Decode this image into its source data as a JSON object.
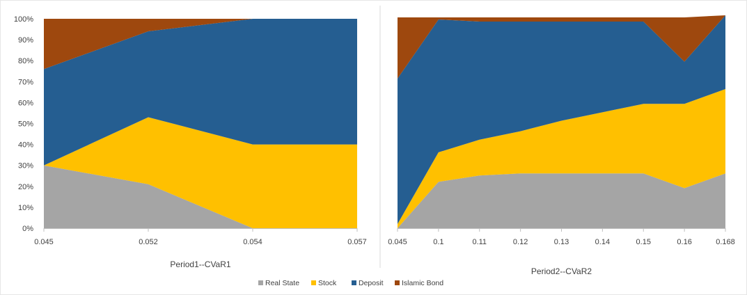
{
  "colors": {
    "real_state": "#a5a5a5",
    "stock": "#ffc000",
    "deposit": "#255e91",
    "islamic_bond": "#9e480e",
    "frame": "#d9d9d9",
    "axis": "#bfbfbf"
  },
  "legend": {
    "placement": "bottom-center",
    "items": [
      "Real State",
      "Stock",
      "Deposit",
      "Islamic Bond"
    ]
  },
  "chart_data": [
    {
      "type": "area",
      "stacked": "percent",
      "title": "",
      "xlabel": "Period1--CVaR1",
      "ylabel": "",
      "ylim": [
        0,
        100
      ],
      "yticks": [
        "0%",
        "10%",
        "20%",
        "30%",
        "40%",
        "50%",
        "60%",
        "70%",
        "80%",
        "90%",
        "100%"
      ],
      "categories": [
        "0.045",
        "0.052",
        "0.054",
        "0.057"
      ],
      "series": [
        {
          "name": "Real State",
          "values": [
            30,
            21,
            0,
            0
          ]
        },
        {
          "name": "Stock",
          "values": [
            0,
            32,
            40,
            40
          ]
        },
        {
          "name": "Deposit",
          "values": [
            46,
            41,
            60,
            60
          ]
        },
        {
          "name": "Islamic Bond",
          "values": [
            24,
            6,
            0,
            0
          ]
        }
      ]
    },
    {
      "type": "area",
      "stacked": "percent",
      "title": "",
      "xlabel": "Period2--CVaR2",
      "ylabel": "",
      "ylim": [
        0,
        100
      ],
      "yticks": [],
      "categories": [
        "0.045",
        "0.1",
        "0.11",
        "0.12",
        "0.13",
        "0.14",
        "0.15",
        "0.16",
        "0.168"
      ],
      "series": [
        {
          "name": "Real State",
          "values": [
            0,
            22,
            25,
            26,
            26,
            26,
            26,
            19,
            26
          ]
        },
        {
          "name": "Stock",
          "values": [
            2,
            14,
            17,
            20,
            25,
            29,
            33,
            40,
            40
          ]
        },
        {
          "name": "Deposit",
          "values": [
            69,
            63,
            56,
            52,
            47,
            43,
            39,
            20,
            35
          ]
        },
        {
          "name": "Islamic Bond",
          "values": [
            29,
            1,
            2,
            2,
            2,
            2,
            2,
            21,
            0
          ]
        }
      ]
    }
  ]
}
